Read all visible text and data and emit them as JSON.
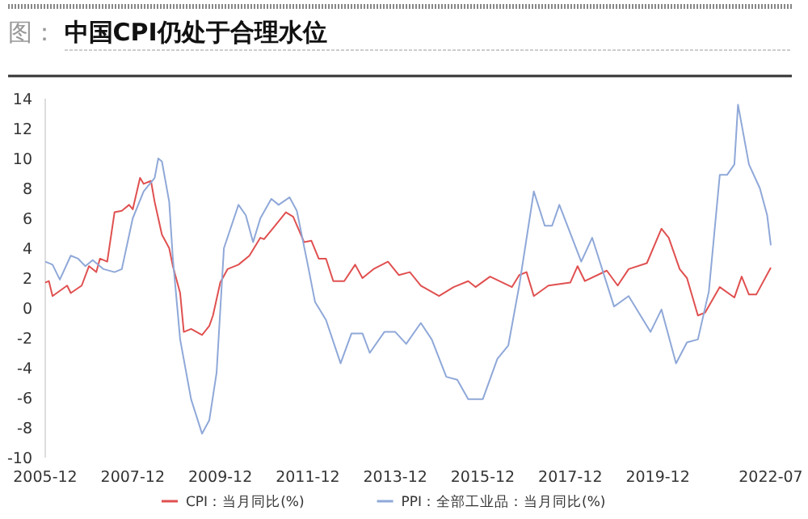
{
  "chart_data": {
    "type": "line",
    "title": "图：  **中国CPI仍处于合理水位**",
    "xlim": [
      "2005-12",
      "2022-07"
    ],
    "xticks": [
      "2005-12",
      "2007-12",
      "2009-12",
      "2011-12",
      "2013-12",
      "2015-12",
      "2017-12",
      "2019-12",
      "2022-07"
    ],
    "ylim": [
      -10,
      14
    ],
    "yticks": [
      -10,
      -8,
      -6,
      -4,
      -2,
      0,
      2,
      4,
      6,
      8,
      10,
      12,
      14
    ],
    "legend": "bottom",
    "series": [
      {
        "name": "CPI：当月同比(%)",
        "color": "#e05050",
        "x": [
          "2005-12",
          "2006-01",
          "2006-02",
          "2006-06",
          "2006-07",
          "2006-10",
          "2006-12",
          "2007-02",
          "2007-03",
          "2007-05",
          "2007-07",
          "2007-09",
          "2007-11",
          "2007-12",
          "2008-02",
          "2008-03",
          "2008-05",
          "2008-06",
          "2008-08",
          "2008-10",
          "2008-11",
          "2009-01",
          "2009-02",
          "2009-04",
          "2009-07",
          "2009-09",
          "2009-10",
          "2009-12",
          "2010-02",
          "2010-05",
          "2010-08",
          "2010-11",
          "2010-12",
          "2011-03",
          "2011-06",
          "2011-08",
          "2011-11",
          "2012-01",
          "2012-03",
          "2012-05",
          "2012-07",
          "2012-10",
          "2013-01",
          "2013-03",
          "2013-06",
          "2013-10",
          "2014-01",
          "2014-04",
          "2014-07",
          "2014-12",
          "2015-04",
          "2015-08",
          "2015-10",
          "2016-02",
          "2016-08",
          "2016-10",
          "2016-12",
          "2017-02",
          "2017-06",
          "2017-12",
          "2018-02",
          "2018-04",
          "2018-10",
          "2019-01",
          "2019-04",
          "2019-09",
          "2020-01",
          "2020-03",
          "2020-06",
          "2020-08",
          "2020-11",
          "2021-01",
          "2021-05",
          "2021-09",
          "2021-11",
          "2022-01",
          "2022-03",
          "2022-07"
        ],
        "values": [
          1.7,
          1.8,
          0.8,
          1.5,
          1.0,
          1.5,
          2.8,
          2.4,
          3.3,
          3.1,
          6.4,
          6.5,
          6.9,
          6.6,
          8.7,
          8.3,
          8.5,
          7.1,
          4.9,
          4.0,
          2.8,
          1.0,
          -1.6,
          -1.4,
          -1.8,
          -1.2,
          -0.5,
          1.7,
          2.6,
          2.9,
          3.5,
          4.7,
          4.6,
          5.5,
          6.4,
          6.1,
          4.4,
          4.5,
          3.3,
          3.3,
          1.8,
          1.8,
          2.9,
          2.0,
          2.6,
          3.1,
          2.2,
          2.4,
          1.5,
          0.8,
          1.4,
          1.8,
          1.4,
          2.1,
          1.4,
          2.2,
          2.4,
          0.8,
          1.5,
          1.7,
          2.8,
          1.8,
          2.5,
          1.5,
          2.6,
          3.0,
          5.3,
          4.7,
          2.6,
          2.0,
          -0.5,
          -0.3,
          1.4,
          0.7,
          2.1,
          0.9,
          0.9,
          2.7
        ]
      },
      {
        "name": "PPI：全部工业品：当月同比(%)",
        "color": "#8fa8d8",
        "x": [
          "2005-12",
          "2006-02",
          "2006-04",
          "2006-07",
          "2006-09",
          "2006-11",
          "2007-01",
          "2007-04",
          "2007-07",
          "2007-09",
          "2007-12",
          "2008-03",
          "2008-06",
          "2008-07",
          "2008-08",
          "2008-10",
          "2008-11",
          "2009-01",
          "2009-04",
          "2009-07",
          "2009-09",
          "2009-11",
          "2010-01",
          "2010-05",
          "2010-07",
          "2010-09",
          "2010-11",
          "2011-02",
          "2011-04",
          "2011-07",
          "2011-09",
          "2011-12",
          "2012-02",
          "2012-05",
          "2012-09",
          "2012-12",
          "2013-03",
          "2013-05",
          "2013-09",
          "2013-12",
          "2014-03",
          "2014-07",
          "2014-10",
          "2015-02",
          "2015-05",
          "2015-08",
          "2015-12",
          "2016-04",
          "2016-07",
          "2016-10",
          "2017-02",
          "2017-05",
          "2017-07",
          "2017-09",
          "2018-03",
          "2018-06",
          "2018-12",
          "2019-04",
          "2019-10",
          "2020-01",
          "2020-05",
          "2020-08",
          "2020-11",
          "2021-02",
          "2021-05",
          "2021-07",
          "2021-09",
          "2021-10",
          "2022-01",
          "2022-04",
          "2022-06",
          "2022-07"
        ],
        "values": [
          3.1,
          2.9,
          1.9,
          3.5,
          3.3,
          2.8,
          3.2,
          2.6,
          2.4,
          2.6,
          6.0,
          7.8,
          8.7,
          10.0,
          9.8,
          7.1,
          3.3,
          -2.1,
          -6.1,
          -8.4,
          -7.5,
          -4.3,
          4.0,
          6.9,
          6.2,
          4.4,
          6.0,
          7.3,
          6.9,
          7.4,
          6.5,
          2.9,
          0.4,
          -0.8,
          -3.7,
          -1.7,
          -1.7,
          -3.0,
          -1.6,
          -1.6,
          -2.4,
          -1.0,
          -2.1,
          -4.6,
          -4.8,
          -6.1,
          -6.1,
          -3.4,
          -2.5,
          1.5,
          7.8,
          5.5,
          5.5,
          6.9,
          3.1,
          4.7,
          0.1,
          0.8,
          -1.6,
          -0.1,
          -3.7,
          -2.3,
          -2.1,
          1.1,
          8.9,
          8.9,
          9.6,
          13.6,
          9.6,
          8.0,
          6.2,
          4.2
        ]
      }
    ]
  }
}
